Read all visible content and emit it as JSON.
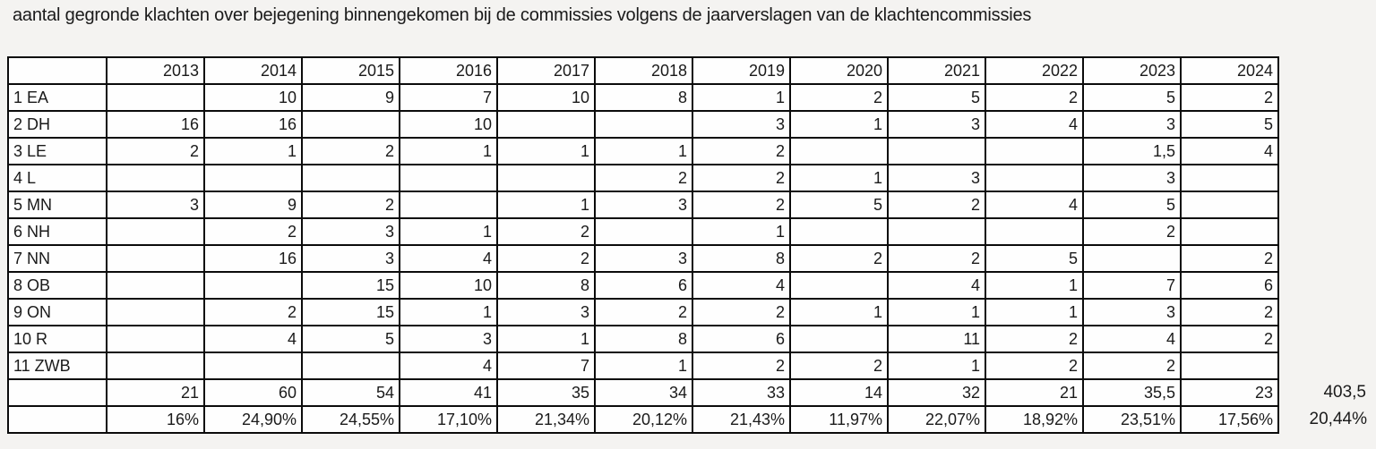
{
  "title": "aantal gegronde klachten over bejegening binnengekomen bij de commissies volgens de jaarverslagen van de klachtencommissies",
  "colors": {
    "border": "#0b0b0b",
    "cell_background": "#fefefe",
    "page_background": "#f4f3f1",
    "text": "#1a1a1a"
  },
  "table": {
    "corner_label": "",
    "years": [
      "2013",
      "2014",
      "2015",
      "2016",
      "2017",
      "2018",
      "2019",
      "2020",
      "2021",
      "2022",
      "2023",
      "2024"
    ],
    "rows": [
      {
        "label": "1 EA",
        "values": [
          "",
          "10",
          "9",
          "7",
          "10",
          "8",
          "1",
          "2",
          "5",
          "2",
          "5",
          "2"
        ]
      },
      {
        "label": "2 DH",
        "values": [
          "16",
          "16",
          "",
          "10",
          "",
          "",
          "3",
          "1",
          "3",
          "4",
          "3",
          "5"
        ]
      },
      {
        "label": "3 LE",
        "values": [
          "2",
          "1",
          "2",
          "1",
          "1",
          "1",
          "2",
          "",
          "",
          "",
          "1,5",
          "4"
        ]
      },
      {
        "label": "4 L",
        "values": [
          "",
          "",
          "",
          "",
          "",
          "2",
          "2",
          "1",
          "3",
          "",
          "3",
          ""
        ]
      },
      {
        "label": "5 MN",
        "values": [
          "3",
          "9",
          "2",
          "",
          "1",
          "3",
          "2",
          "5",
          "2",
          "4",
          "5",
          ""
        ]
      },
      {
        "label": "6 NH",
        "values": [
          "",
          "2",
          "3",
          "1",
          "2",
          "",
          "1",
          "",
          "",
          "",
          "2",
          ""
        ]
      },
      {
        "label": "7 NN",
        "values": [
          "",
          "16",
          "3",
          "4",
          "2",
          "3",
          "8",
          "2",
          "2",
          "5",
          "",
          "2"
        ]
      },
      {
        "label": "8 OB",
        "values": [
          "",
          "",
          "15",
          "10",
          "8",
          "6",
          "4",
          "",
          "4",
          "1",
          "7",
          "6"
        ]
      },
      {
        "label": "9 ON",
        "values": [
          "",
          "2",
          "15",
          "1",
          "3",
          "2",
          "2",
          "1",
          "1",
          "1",
          "3",
          "2"
        ]
      },
      {
        "label": "10 R",
        "values": [
          "",
          "4",
          "5",
          "3",
          "1",
          "8",
          "6",
          "",
          "11",
          "2",
          "4",
          "2"
        ]
      },
      {
        "label": "11 ZWB",
        "values": [
          "",
          "",
          "",
          "4",
          "7",
          "1",
          "2",
          "2",
          "1",
          "2",
          "2",
          ""
        ]
      }
    ],
    "totals_row": {
      "label": "",
      "values": [
        "21",
        "60",
        "54",
        "41",
        "35",
        "34",
        "33",
        "14",
        "32",
        "21",
        "35,5",
        "23"
      ],
      "grand_total": "403,5"
    },
    "percent_row": {
      "label": "",
      "values": [
        "16%",
        "24,90%",
        "24,55%",
        "17,10%",
        "21,34%",
        "20,12%",
        "21,43%",
        "11,97%",
        "22,07%",
        "18,92%",
        "23,51%",
        "17,56%"
      ],
      "overall": "20,44%"
    }
  }
}
